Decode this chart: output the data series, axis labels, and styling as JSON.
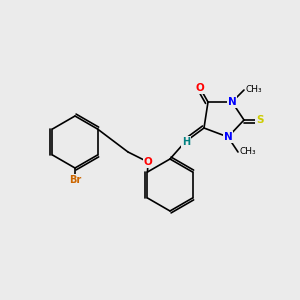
{
  "background_color": "#ebebeb",
  "bond_color": "#000000",
  "double_bond_color": "#000000",
  "colors": {
    "N": "#0000ff",
    "O": "#ff0000",
    "S": "#cccc00",
    "Br": "#cc6600",
    "H": "#008080",
    "C": "#000000"
  },
  "font_size": 7.5
}
